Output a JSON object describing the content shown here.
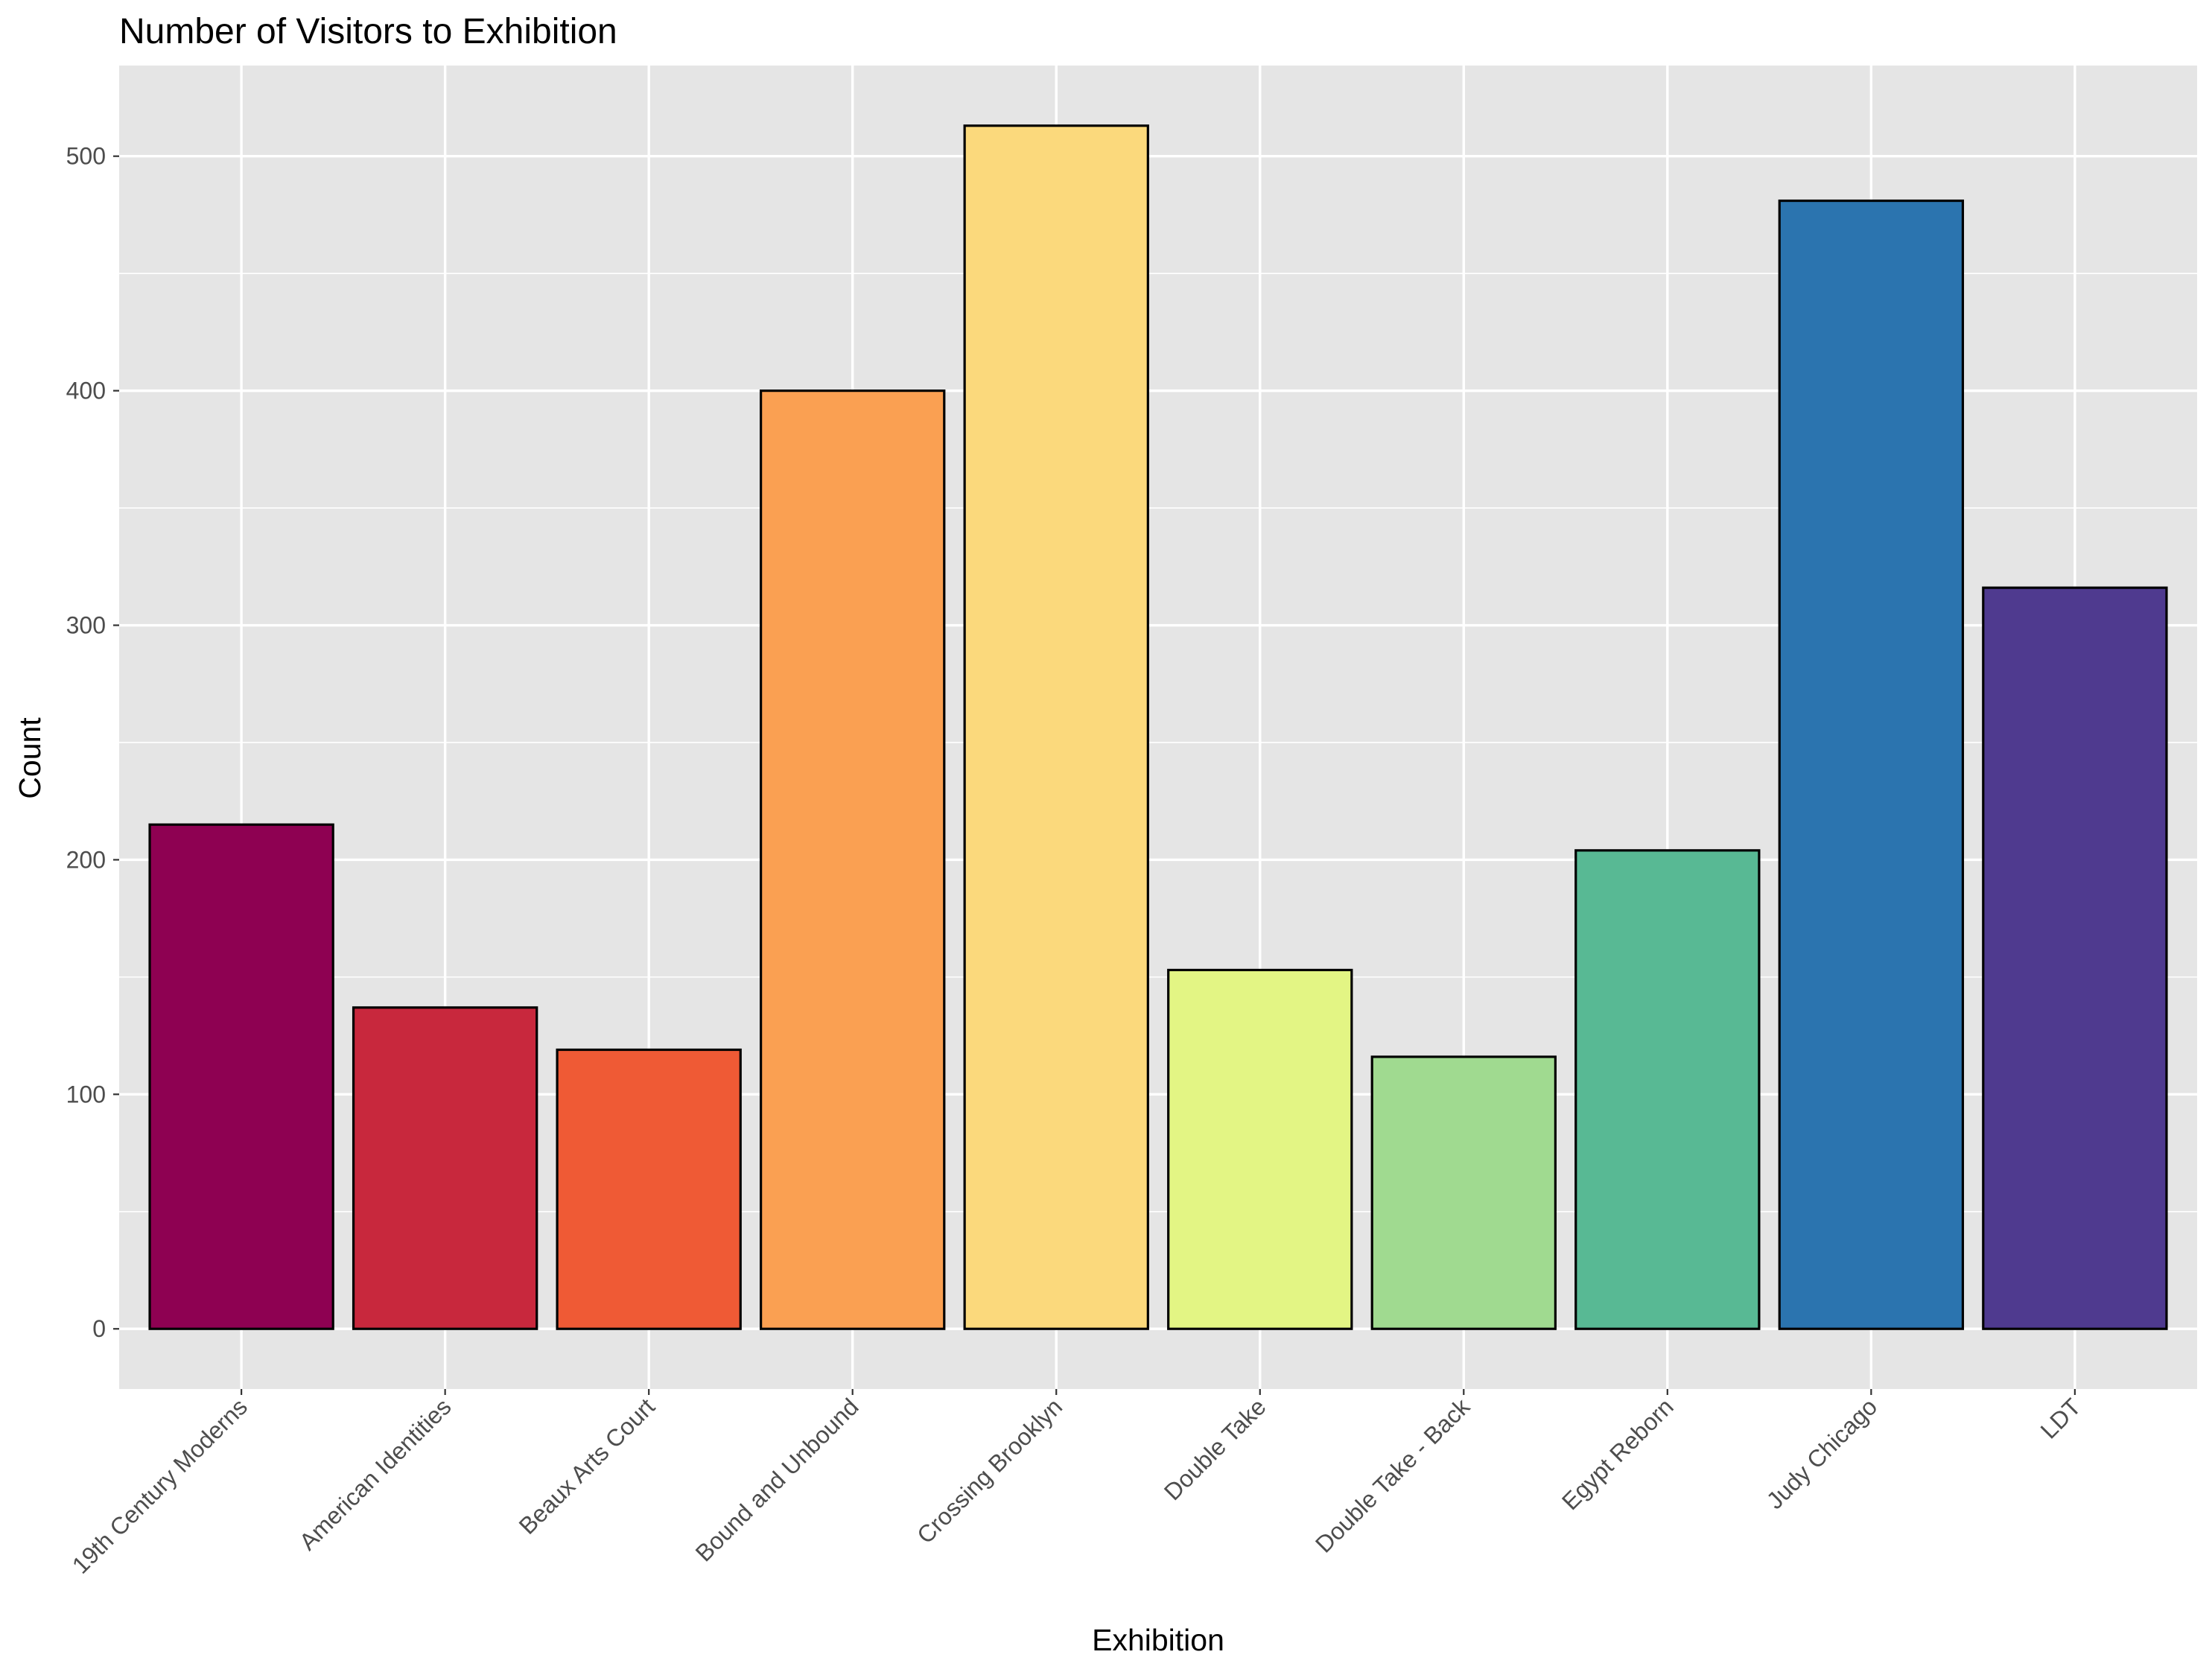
{
  "chart_data": {
    "type": "bar",
    "title": "Number of Visitors to Exhibition",
    "xlabel": "Exhibition",
    "ylabel": "Count",
    "categories": [
      "19th Century Moderns",
      "American Identities",
      "Beaux Arts Court",
      "Bound and Unbound",
      "Crossing Brooklyn",
      "Double Take",
      "Double Take - Back",
      "Egypt Reborn",
      "Judy Chicago",
      "LDT"
    ],
    "values": [
      215,
      137,
      119,
      400,
      513,
      153,
      116,
      204,
      481,
      316
    ],
    "colors": [
      "#8E0152",
      "#C8283D",
      "#EF5A35",
      "#FAA052",
      "#FBD97C",
      "#E3F584",
      "#A0DA90",
      "#58B994",
      "#2B74AF",
      "#4F3A8F"
    ],
    "bar_outline_color": "#000000",
    "panel_background": "#E5E5E5",
    "grid_color": "#FFFFFF",
    "ylim": [
      -25.65,
      538.65
    ],
    "yticks": [
      0,
      100,
      200,
      300,
      400,
      500
    ],
    "grid": true,
    "legend": "none"
  }
}
